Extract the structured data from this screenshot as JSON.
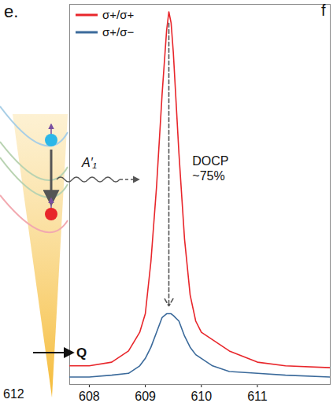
{
  "chart_data": {
    "type": "line",
    "panel_label": "e.",
    "next_panel_label": "f",
    "x": [
      607.65,
      608.0,
      608.4,
      608.7,
      608.9,
      609.0,
      609.1,
      609.2,
      609.3,
      609.38,
      609.42,
      609.46,
      609.5,
      609.6,
      609.7,
      609.8,
      609.9,
      610.0,
      610.2,
      610.5,
      611.0,
      611.5,
      612.3
    ],
    "series": [
      {
        "name": "σ+/σ+",
        "color": "#e8262b",
        "values": [
          0.05,
          0.05,
          0.06,
          0.09,
          0.14,
          0.19,
          0.33,
          0.53,
          0.78,
          0.95,
          1.0,
          0.97,
          0.89,
          0.62,
          0.39,
          0.24,
          0.17,
          0.14,
          0.12,
          0.09,
          0.06,
          0.05,
          0.045
        ]
      },
      {
        "name": "σ+/σ−",
        "color": "#3b6a9b",
        "values": [
          0.02,
          0.02,
          0.025,
          0.03,
          0.05,
          0.07,
          0.1,
          0.14,
          0.18,
          0.19,
          0.19,
          0.19,
          0.185,
          0.17,
          0.13,
          0.1,
          0.08,
          0.07,
          0.05,
          0.035,
          0.03,
          0.025,
          0.02
        ]
      }
    ],
    "xlim": [
      607.65,
      612.3
    ],
    "xticks": [
      608,
      609,
      610,
      611
    ],
    "ylim": [
      0,
      1.02
    ],
    "tick_labels": "x",
    "legend": "top-left",
    "annotations": {
      "docp": "DOCP ~75%",
      "phonon": "A′₁",
      "momentum": "Q",
      "neighbor_tick": "612"
    }
  }
}
